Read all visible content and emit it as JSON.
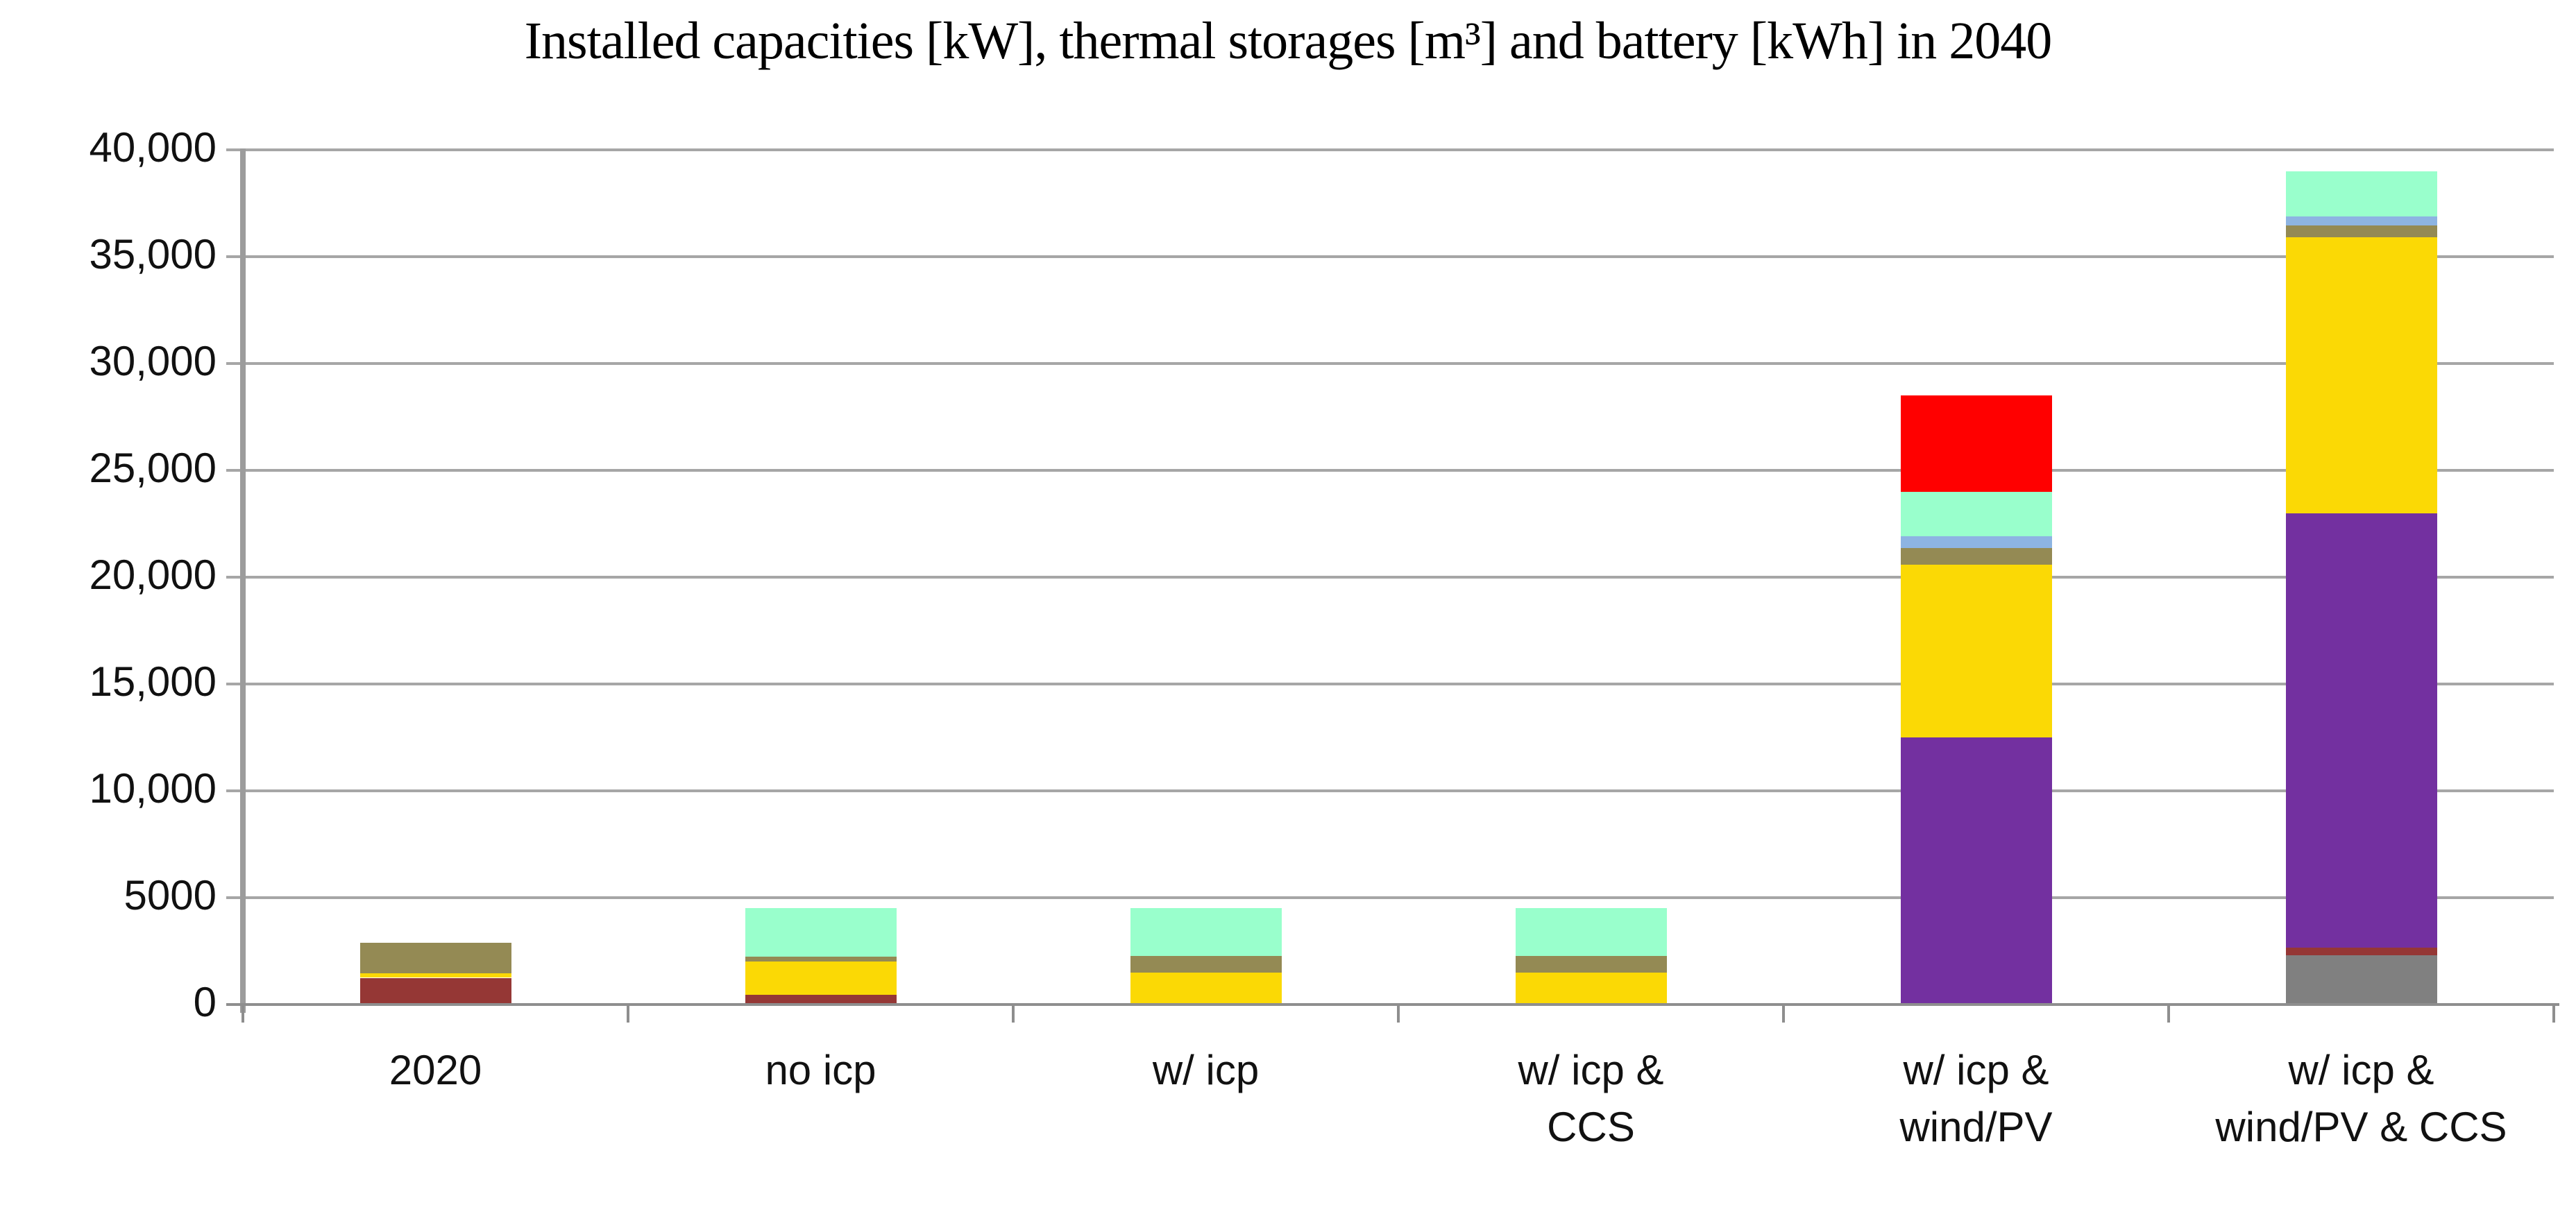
{
  "chart_data": {
    "type": "bar",
    "stacked": true,
    "title": "Installed capacities [kW], thermal storages [m³] and battery [kWh] in 2040",
    "grid": "horizontal-major",
    "legend": "none",
    "y_axis": {
      "min": 0,
      "max": 40000,
      "step": 5000,
      "tick_labels_top_to_bottom": [
        "40,000",
        "35,000",
        "30,000",
        "25,000",
        "20,000",
        "15,000",
        "10,000",
        "5000",
        "0"
      ]
    },
    "categories": [
      {
        "label": "2020",
        "label_lines": [
          "2020"
        ]
      },
      {
        "label": "no icp",
        "label_lines": [
          "no icp"
        ]
      },
      {
        "label": "w/ icp",
        "label_lines": [
          "w/ icp"
        ]
      },
      {
        "label": "w/ icp & CCS",
        "label_lines": [
          "w/ icp &",
          "CCS"
        ]
      },
      {
        "label": "w/ icp & wind/PV",
        "label_lines": [
          "w/ icp &",
          "wind/PV"
        ]
      },
      {
        "label": "w/ icp & wind/PV & CCS",
        "label_lines": [
          "w/ icp &",
          "wind/PV & CCS"
        ]
      }
    ],
    "series": [
      {
        "name": "gray-segment",
        "color": "#808080",
        "values": [
          0,
          0,
          0,
          0,
          0,
          2300
        ]
      },
      {
        "name": "dark-red-segment",
        "color": "#953735",
        "values": [
          1250,
          450,
          0,
          0,
          0,
          360
        ]
      },
      {
        "name": "purple-segment",
        "color": "#7330A0",
        "values": [
          0,
          0,
          0,
          0,
          12500,
          20340
        ]
      },
      {
        "name": "yellow-segment",
        "color": "#FBD905",
        "values": [
          200,
          1550,
          1500,
          1500,
          8100,
          12900
        ]
      },
      {
        "name": "olive-segment",
        "color": "#948A54",
        "values": [
          1450,
          250,
          770,
          770,
          750,
          550
        ]
      },
      {
        "name": "blue-segment",
        "color": "#8DB4E2",
        "values": [
          0,
          0,
          0,
          0,
          570,
          430
        ]
      },
      {
        "name": "mint-segment",
        "color": "#99FFCC",
        "values": [
          0,
          2250,
          2230,
          2230,
          2080,
          2120
        ]
      },
      {
        "name": "red-segment",
        "color": "#FF0000",
        "values": [
          0,
          0,
          0,
          0,
          4500,
          0
        ]
      }
    ],
    "totals": [
      2900,
      4500,
      4500,
      4500,
      28500,
      39000
    ],
    "colors": {
      "gridline": "#A6A6A6",
      "axis": "#8E8E8E",
      "text": "#111111"
    }
  }
}
